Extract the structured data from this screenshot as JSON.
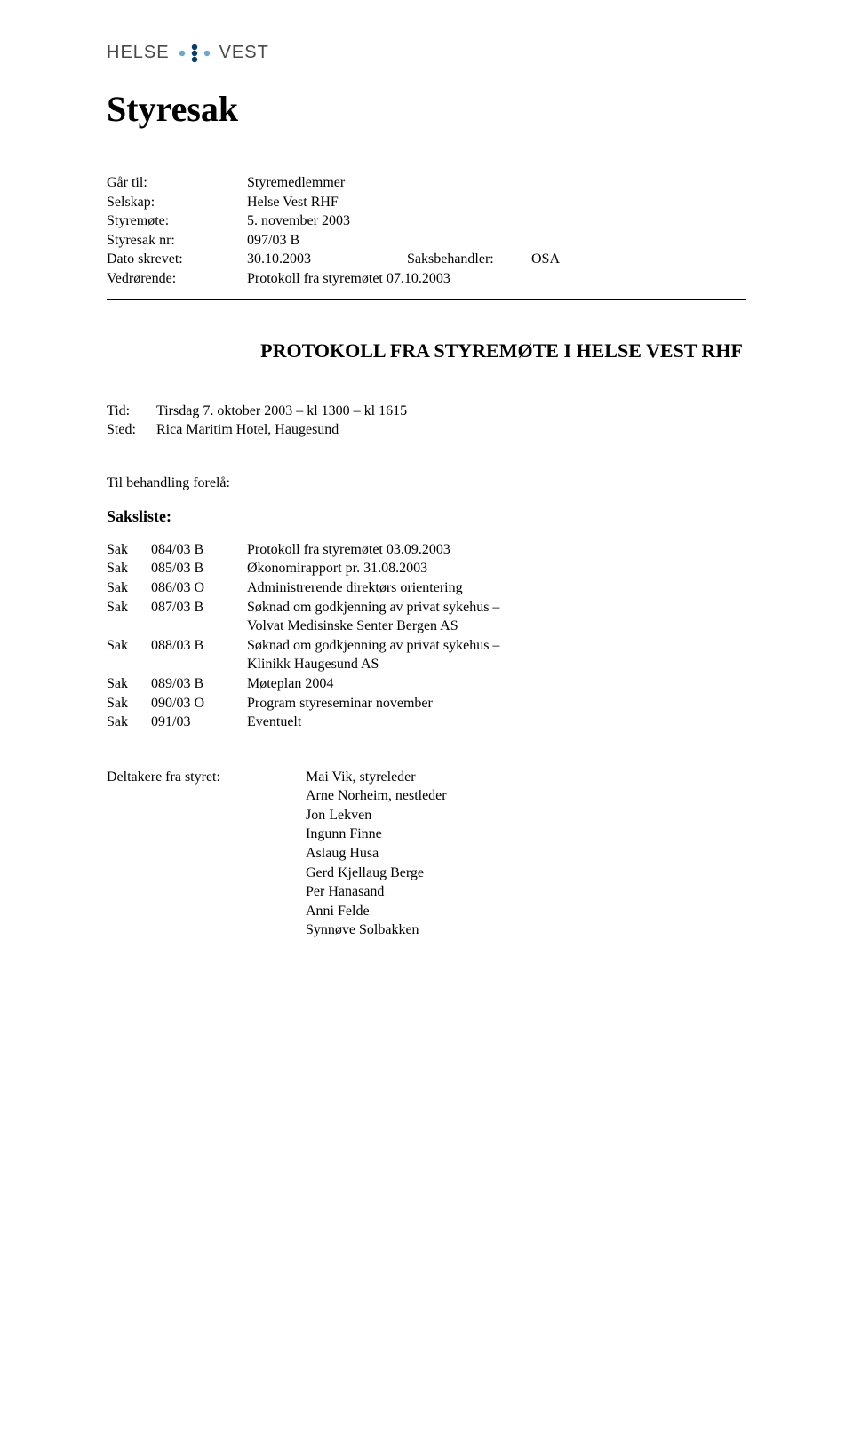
{
  "logo": {
    "text_left": "HELSE",
    "text_right": "VEST",
    "dot_color_dark": "#0a3d62",
    "dot_color_light": "#6fa8c7"
  },
  "title": "Styresak",
  "meta": {
    "rows": [
      {
        "label": "Går til:",
        "value": "Styremedlemmer"
      },
      {
        "label": "Selskap:",
        "value": "Helse Vest RHF"
      },
      {
        "label": "Styremøte:",
        "value": "5. november 2003"
      },
      {
        "label": "Styresak nr:",
        "value": "097/03 B"
      },
      {
        "label": "Dato skrevet:",
        "value": "30.10.2003",
        "extra_label": "Saksbehandler:",
        "extra_value": "OSA"
      },
      {
        "label": "Vedrørende:",
        "value": "Protokoll fra styremøtet 07.10.2003"
      }
    ]
  },
  "doc_heading": "PROTOKOLL FRA STYREMØTE I HELSE VEST RHF",
  "tidsted": {
    "tid_label": "Tid:",
    "tid_value": "Tirsdag  7. oktober  2003 – kl 1300 – kl 1615",
    "sted_label": "Sted:",
    "sted_value": "Rica Maritim Hotel, Haugesund"
  },
  "behandling_label": "Til behandling forelå:",
  "saksliste_head": "Saksliste:",
  "sak_word": "Sak",
  "saks": [
    {
      "nr": "084/03 B",
      "text": "Protokoll fra styremøtet 03.09.2003"
    },
    {
      "nr": "085/03 B",
      "text": "Økonomirapport pr. 31.08.2003"
    },
    {
      "nr": "086/03 O",
      "text": "Administrerende direktørs orientering"
    },
    {
      "nr": "087/03 B",
      "text": "Søknad om godkjenning av privat sykehus –",
      "sub": "Volvat Medisinske Senter Bergen AS"
    },
    {
      "nr": "088/03 B",
      "text": "Søknad om godkjenning av privat sykehus –",
      "sub": "Klinikk Haugesund AS"
    },
    {
      "nr": "089/03 B",
      "text": "Møteplan 2004"
    },
    {
      "nr": "090/03 O",
      "text": "Program styreseminar november"
    },
    {
      "nr": "091/03",
      "text": "Eventuelt"
    }
  ],
  "participants": {
    "label": "Deltakere fra styret:",
    "names": [
      "Mai Vik, styreleder",
      "Arne Norheim, nestleder",
      "Jon Lekven",
      "Ingunn Finne",
      "Aslaug Husa",
      "Gerd Kjellaug Berge",
      "Per Hanasand",
      "Anni Felde",
      "Synnøve Solbakken"
    ]
  }
}
